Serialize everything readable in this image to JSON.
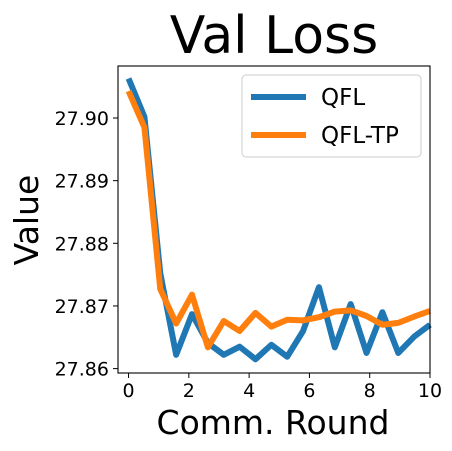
{
  "chart_data": {
    "type": "line",
    "title": "Val Loss",
    "xlabel": "Comm. Round",
    "ylabel": "Value",
    "xlim": [
      -0.35,
      10.0
    ],
    "ylim": [
      27.8593,
      27.9083
    ],
    "xticks": [
      0,
      2,
      4,
      6,
      8,
      10
    ],
    "xtick_labels": [
      "0",
      "2",
      "4",
      "6",
      "8",
      "10"
    ],
    "yticks": [
      27.86,
      27.87,
      27.88,
      27.89,
      27.9
    ],
    "ytick_labels": [
      "27.86",
      "27.87",
      "27.88",
      "27.89",
      "27.90"
    ],
    "legend_position": "top-right",
    "grid": false,
    "x": [
      0,
      0.5263,
      1.0526,
      1.5789,
      2.1053,
      2.6316,
      3.1579,
      3.6842,
      4.2105,
      4.7368,
      5.2632,
      5.7895,
      6.3158,
      6.8421,
      7.3684,
      7.8947,
      8.4211,
      8.9474,
      9.4737,
      10.0
    ],
    "series": [
      {
        "name": "QFL",
        "color": "#1f77b4",
        "values": [
          27.9063,
          27.9002,
          27.8752,
          27.8622,
          27.8687,
          27.8641,
          27.8622,
          27.8635,
          27.8615,
          27.8638,
          27.8619,
          27.866,
          27.873,
          27.8634,
          27.8703,
          27.8625,
          27.869,
          27.8625,
          27.8651,
          27.867
        ]
      },
      {
        "name": "QFL-TP",
        "color": "#ff7f0e",
        "values": [
          27.9043,
          27.8985,
          27.8727,
          27.8672,
          27.8718,
          27.8634,
          27.8676,
          27.866,
          27.8689,
          27.8667,
          27.8678,
          27.8677,
          27.8682,
          27.8691,
          27.8693,
          27.8684,
          27.867,
          27.8673,
          27.8683,
          27.8692
        ]
      }
    ]
  }
}
